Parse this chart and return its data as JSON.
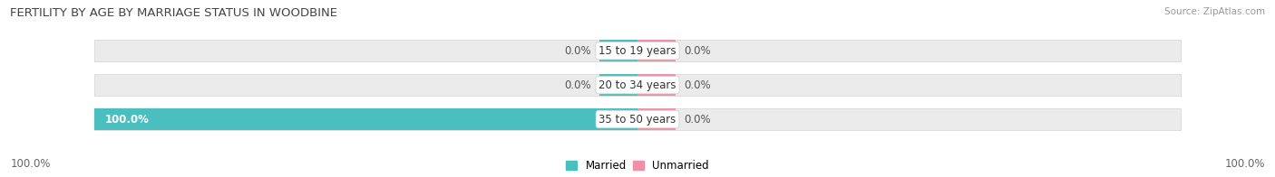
{
  "title": "FERTILITY BY AGE BY MARRIAGE STATUS IN WOODBINE",
  "source": "Source: ZipAtlas.com",
  "categories": [
    "15 to 19 years",
    "20 to 34 years",
    "35 to 50 years"
  ],
  "married_vals": [
    0.0,
    0.0,
    100.0
  ],
  "unmarried_vals": [
    0.0,
    0.0,
    0.0
  ],
  "bar_max": 100.0,
  "married_color": "#4bbfbf",
  "unmarried_color": "#f090a8",
  "bg_bar_color": "#ebebeb",
  "bar_border_color": "#d8d8d8",
  "title_fontsize": 9.5,
  "label_fontsize": 8.5,
  "source_fontsize": 7.5,
  "tick_fontsize": 8.5,
  "left_axis_label": "100.0%",
  "right_axis_label": "100.0%",
  "background_color": "#ffffff",
  "center_label_bg": "#ffffff",
  "married_label_color": "#555555",
  "unmarried_label_color": "#555555",
  "inside_label_color": "#ffffff"
}
